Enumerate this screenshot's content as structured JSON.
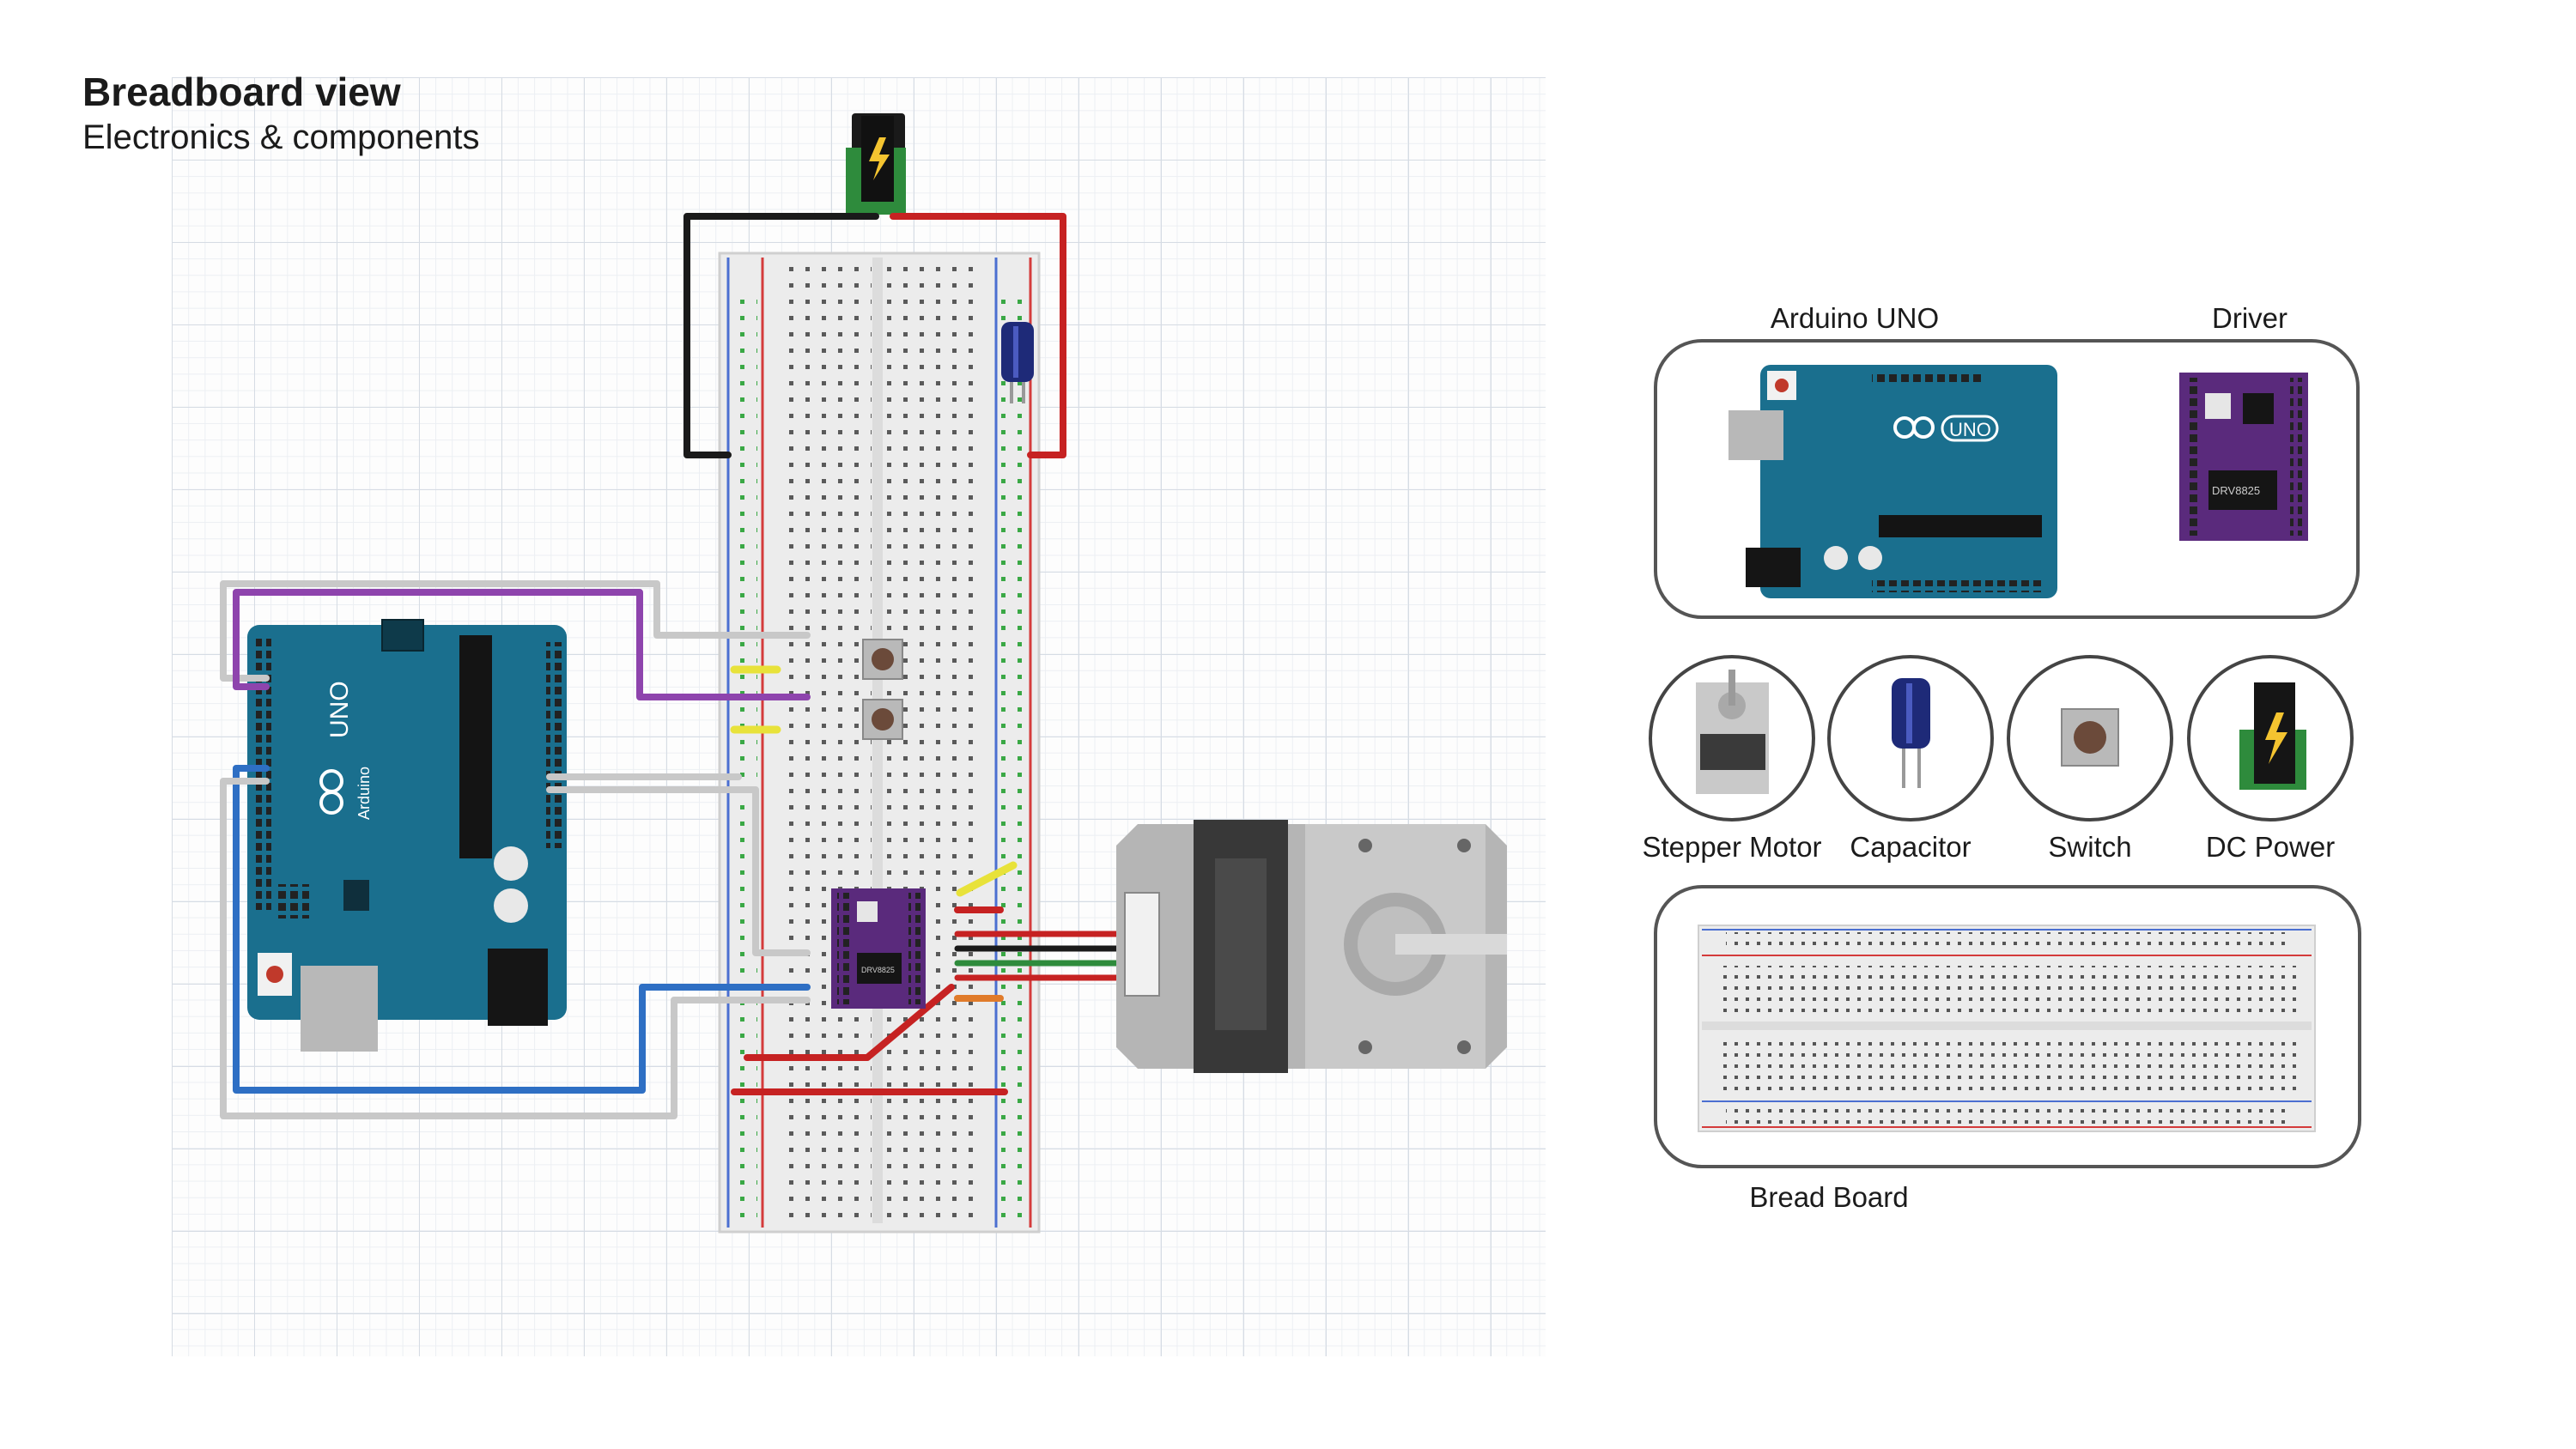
{
  "header": {
    "title": "Breadboard view",
    "subtitle": "Electronics & components"
  },
  "boards": {
    "arduino_logo": "UNO",
    "arduino_brand": "Arduino",
    "driver_chip": "DRV8825"
  },
  "legend": {
    "arduino_label": "Arduino UNO",
    "driver_label": "Driver",
    "stepper_label": "Stepper Motor",
    "capacitor_label": "Capacitor",
    "switch_label": "Switch",
    "dc_power_label": "DC Power",
    "breadboard_label": "Bread Board"
  },
  "colors": {
    "arduino_blue": "#1a6f8e",
    "driver_purple": "#5a2a7c",
    "wire_red": "#c62222",
    "wire_black": "#1a1a1a",
    "wire_purple": "#8e44ad",
    "wire_blue": "#2e6fc4",
    "wire_gray": "#c8c8c8",
    "wire_yellow": "#e8e23a",
    "motor_gray": "#a9a9a9"
  }
}
